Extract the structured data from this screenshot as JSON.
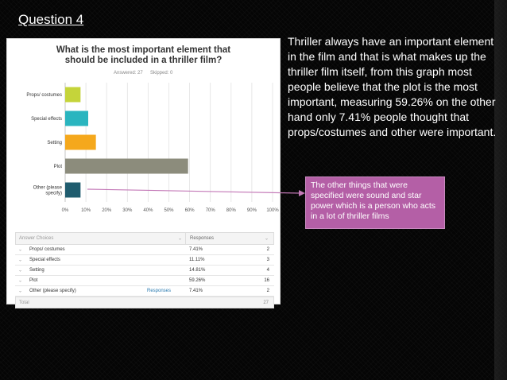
{
  "slide": {
    "title": "Question 4",
    "description": "Thriller always have an important element in the film and that is what makes up the thriller film itself, from this graph most people believe that the plot is the most important, measuring 59.26% on the other hand only 7.41% people thought that props/costumes and other were important.",
    "note": "The other things that were specified were sound and star power which is a person who acts in a lot of thriller films"
  },
  "survey": {
    "answered": "Answered: 27",
    "skipped": "Skipped: 0"
  },
  "chart_data": {
    "type": "bar",
    "orientation": "horizontal",
    "title": "What is the most important element that should be included in a thriller film?",
    "categories": [
      "Props/ costumes",
      "Special effects",
      "Setting",
      "Plot",
      "Other (please specify)"
    ],
    "values": [
      7.41,
      11.11,
      14.81,
      59.26,
      7.41
    ],
    "colors": [
      "#c5d43a",
      "#2ab5bf",
      "#f5a81c",
      "#8c8c7c",
      "#1f5c6e"
    ],
    "xlim": [
      0,
      100
    ],
    "xticks": [
      "0%",
      "10%",
      "20%",
      "30%",
      "40%",
      "50%",
      "60%",
      "70%",
      "80%",
      "90%",
      "100%"
    ],
    "grid": true,
    "xlabel": "",
    "ylabel": ""
  },
  "table": {
    "header": {
      "choices": "Answer Choices",
      "responses": "Responses"
    },
    "rows": [
      {
        "label": "Props/ costumes",
        "pct": "7.41%",
        "count": "2"
      },
      {
        "label": "Special effects",
        "pct": "11.11%",
        "count": "3"
      },
      {
        "label": "Setting",
        "pct": "14.81%",
        "count": "4"
      },
      {
        "label": "Plot",
        "pct": "59.26%",
        "count": "16"
      },
      {
        "label": "Other (please specify)",
        "pct": "7.41%",
        "count": "2",
        "link": "Responses"
      }
    ],
    "total_label": "Total",
    "total": "27"
  }
}
